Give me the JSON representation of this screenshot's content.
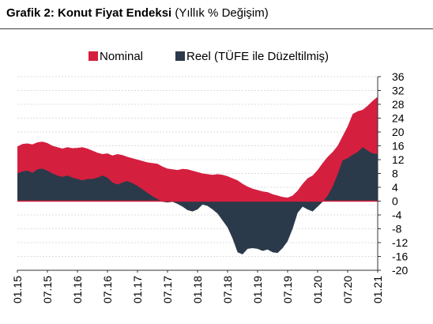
{
  "title_bold": "Grafik 2: Konut Fiyat Endeksi",
  "title_rest": "(Yıllık % Değişim)",
  "chart_data": {
    "type": "area",
    "legend_position": "top",
    "grid": true,
    "ylim": [
      -20,
      36
    ],
    "yticks": [
      36,
      32,
      28,
      24,
      20,
      16,
      12,
      8,
      4,
      0,
      -4,
      -8,
      -12,
      -16,
      -20
    ],
    "xlim": [
      "2015-01",
      "2021-01"
    ],
    "xtick_labels": [
      "01.15",
      "07.15",
      "01.16",
      "07.16",
      "01.17",
      "07.17",
      "01.18",
      "07.18",
      "01.19",
      "07.19",
      "01.20",
      "07.20",
      "01.21"
    ],
    "series": [
      {
        "name": "Nominal",
        "color": "#d51f3f",
        "values": [
          [
            "2015-01",
            15.8
          ],
          [
            "2015-02",
            16.5
          ],
          [
            "2015-03",
            16.7
          ],
          [
            "2015-04",
            16.4
          ],
          [
            "2015-05",
            17.0
          ],
          [
            "2015-06",
            17.2
          ],
          [
            "2015-07",
            16.8
          ],
          [
            "2015-08",
            16.0
          ],
          [
            "2015-09",
            15.6
          ],
          [
            "2015-10",
            15.2
          ],
          [
            "2015-11",
            15.6
          ],
          [
            "2015-12",
            15.3
          ],
          [
            "2016-01",
            15.4
          ],
          [
            "2016-02",
            15.6
          ],
          [
            "2016-03",
            15.2
          ],
          [
            "2016-04",
            14.6
          ],
          [
            "2016-05",
            14.0
          ],
          [
            "2016-06",
            13.6
          ],
          [
            "2016-07",
            13.8
          ],
          [
            "2016-08",
            13.2
          ],
          [
            "2016-09",
            13.6
          ],
          [
            "2016-10",
            13.3
          ],
          [
            "2016-11",
            12.8
          ],
          [
            "2016-12",
            12.4
          ],
          [
            "2017-01",
            12.0
          ],
          [
            "2017-02",
            11.6
          ],
          [
            "2017-03",
            11.2
          ],
          [
            "2017-04",
            11.0
          ],
          [
            "2017-05",
            10.8
          ],
          [
            "2017-06",
            10.0
          ],
          [
            "2017-07",
            9.4
          ],
          [
            "2017-08",
            9.2
          ],
          [
            "2017-09",
            9.0
          ],
          [
            "2017-10",
            9.3
          ],
          [
            "2017-11",
            9.2
          ],
          [
            "2017-12",
            8.8
          ],
          [
            "2018-01",
            8.4
          ],
          [
            "2018-02",
            8.0
          ],
          [
            "2018-03",
            7.8
          ],
          [
            "2018-04",
            7.6
          ],
          [
            "2018-05",
            7.8
          ],
          [
            "2018-06",
            7.6
          ],
          [
            "2018-07",
            7.2
          ],
          [
            "2018-08",
            6.6
          ],
          [
            "2018-09",
            6.0
          ],
          [
            "2018-10",
            5.0
          ],
          [
            "2018-11",
            4.2
          ],
          [
            "2018-12",
            3.6
          ],
          [
            "2019-01",
            3.2
          ],
          [
            "2019-02",
            2.8
          ],
          [
            "2019-03",
            2.6
          ],
          [
            "2019-04",
            2.0
          ],
          [
            "2019-05",
            1.6
          ],
          [
            "2019-06",
            1.2
          ],
          [
            "2019-07",
            1.0
          ],
          [
            "2019-08",
            1.6
          ],
          [
            "2019-09",
            3.0
          ],
          [
            "2019-10",
            5.0
          ],
          [
            "2019-11",
            6.6
          ],
          [
            "2019-12",
            7.4
          ],
          [
            "2020-01",
            9.0
          ],
          [
            "2020-02",
            11.0
          ],
          [
            "2020-03",
            12.8
          ],
          [
            "2020-04",
            14.2
          ],
          [
            "2020-05",
            16.0
          ],
          [
            "2020-06",
            18.8
          ],
          [
            "2020-07",
            21.6
          ],
          [
            "2020-08",
            25.2
          ],
          [
            "2020-09",
            26.0
          ],
          [
            "2020-10",
            26.4
          ],
          [
            "2020-11",
            27.6
          ],
          [
            "2020-12",
            29.0
          ],
          [
            "2021-01",
            30.2
          ]
        ]
      },
      {
        "name": "Reel (TÜFE ile Düzeltilmiş)",
        "color": "#2b3a4a",
        "values": [
          [
            "2015-01",
            8.0
          ],
          [
            "2015-02",
            8.6
          ],
          [
            "2015-03",
            8.8
          ],
          [
            "2015-04",
            8.2
          ],
          [
            "2015-05",
            9.2
          ],
          [
            "2015-06",
            9.4
          ],
          [
            "2015-07",
            8.8
          ],
          [
            "2015-08",
            8.0
          ],
          [
            "2015-09",
            7.4
          ],
          [
            "2015-10",
            7.0
          ],
          [
            "2015-11",
            7.4
          ],
          [
            "2015-12",
            6.8
          ],
          [
            "2016-01",
            6.4
          ],
          [
            "2016-02",
            6.0
          ],
          [
            "2016-03",
            6.4
          ],
          [
            "2016-04",
            6.4
          ],
          [
            "2016-05",
            6.8
          ],
          [
            "2016-06",
            7.4
          ],
          [
            "2016-07",
            6.8
          ],
          [
            "2016-08",
            5.4
          ],
          [
            "2016-09",
            4.8
          ],
          [
            "2016-10",
            5.4
          ],
          [
            "2016-11",
            5.8
          ],
          [
            "2016-12",
            5.2
          ],
          [
            "2017-01",
            4.4
          ],
          [
            "2017-02",
            3.4
          ],
          [
            "2017-03",
            2.4
          ],
          [
            "2017-04",
            1.4
          ],
          [
            "2017-05",
            0.6
          ],
          [
            "2017-06",
            -0.2
          ],
          [
            "2017-07",
            -0.4
          ],
          [
            "2017-08",
            -0.2
          ],
          [
            "2017-09",
            -0.8
          ],
          [
            "2017-10",
            -1.6
          ],
          [
            "2017-11",
            -2.6
          ],
          [
            "2017-12",
            -3.0
          ],
          [
            "2018-01",
            -2.4
          ],
          [
            "2018-02",
            -1.0
          ],
          [
            "2018-03",
            -1.4
          ],
          [
            "2018-04",
            -2.4
          ],
          [
            "2018-05",
            -3.6
          ],
          [
            "2018-06",
            -5.6
          ],
          [
            "2018-07",
            -7.6
          ],
          [
            "2018-08",
            -10.8
          ],
          [
            "2018-09",
            -14.8
          ],
          [
            "2018-10",
            -15.4
          ],
          [
            "2018-11",
            -13.8
          ],
          [
            "2018-12",
            -13.6
          ],
          [
            "2019-01",
            -13.8
          ],
          [
            "2019-02",
            -14.4
          ],
          [
            "2019-03",
            -14.0
          ],
          [
            "2019-04",
            -14.8
          ],
          [
            "2019-05",
            -15.0
          ],
          [
            "2019-06",
            -13.6
          ],
          [
            "2019-07",
            -11.6
          ],
          [
            "2019-08",
            -8.0
          ],
          [
            "2019-09",
            -3.4
          ],
          [
            "2019-10",
            -1.6
          ],
          [
            "2019-11",
            -2.4
          ],
          [
            "2019-12",
            -3.0
          ],
          [
            "2020-01",
            -1.6
          ],
          [
            "2020-02",
            -0.2
          ],
          [
            "2020-03",
            1.6
          ],
          [
            "2020-04",
            4.2
          ],
          [
            "2020-05",
            7.8
          ],
          [
            "2020-06",
            11.8
          ],
          [
            "2020-07",
            12.4
          ],
          [
            "2020-08",
            13.4
          ],
          [
            "2020-09",
            14.2
          ],
          [
            "2020-10",
            15.6
          ],
          [
            "2020-11",
            14.6
          ],
          [
            "2020-12",
            13.8
          ],
          [
            "2021-01",
            13.6
          ]
        ]
      }
    ]
  }
}
